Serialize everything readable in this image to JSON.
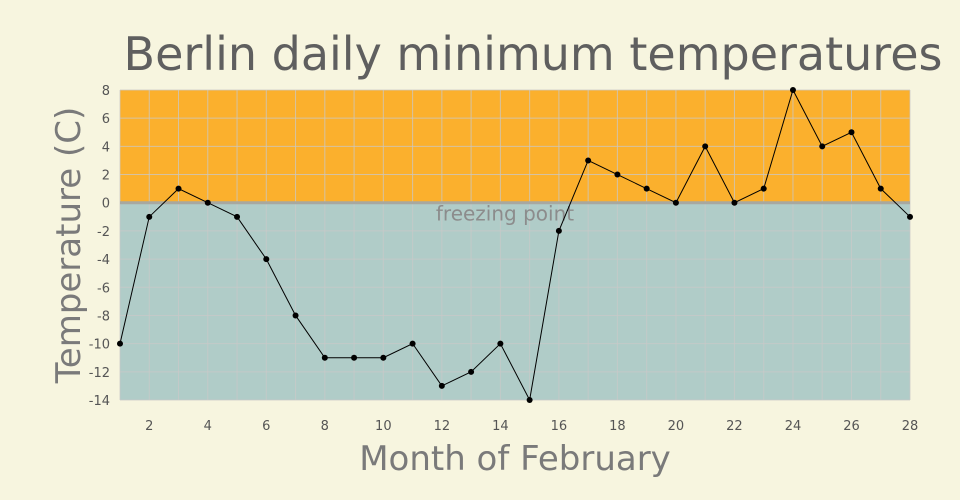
{
  "chart_data": {
    "type": "line",
    "title": "Berlin daily minimum temperatures",
    "xlabel": "Month of February",
    "ylabel": "Temperature (C)",
    "x": [
      1,
      2,
      3,
      4,
      5,
      6,
      7,
      8,
      9,
      10,
      11,
      12,
      13,
      14,
      15,
      16,
      17,
      18,
      19,
      20,
      21,
      22,
      23,
      24,
      25,
      26,
      27,
      28
    ],
    "series": [
      {
        "values": [
          -10,
          -1,
          1,
          0,
          -1,
          -4,
          -8,
          -11,
          -11,
          -11,
          -10,
          -13,
          -12,
          -10,
          -14,
          -2,
          3,
          2,
          1,
          0,
          4,
          0,
          1,
          8,
          4,
          5,
          1,
          -1
        ]
      }
    ],
    "xlim": [
      1,
      28
    ],
    "ylim": [
      -14,
      8
    ],
    "x_ticks": [
      2,
      4,
      6,
      8,
      10,
      12,
      14,
      16,
      18,
      20,
      22,
      24,
      26,
      28
    ],
    "y_ticks": [
      8,
      6,
      4,
      2,
      0,
      -2,
      -4,
      -6,
      -8,
      -10,
      -12,
      -14
    ],
    "grid": true,
    "bands": [
      {
        "from": 0,
        "to": 8,
        "color": "#fbb02d"
      },
      {
        "from": -14,
        "to": 0,
        "color": "#b0ccc8"
      }
    ],
    "reference_line": {
      "y": 0,
      "label": "freezing point",
      "color": "#a8a8a0"
    },
    "line_color": "#000000"
  }
}
